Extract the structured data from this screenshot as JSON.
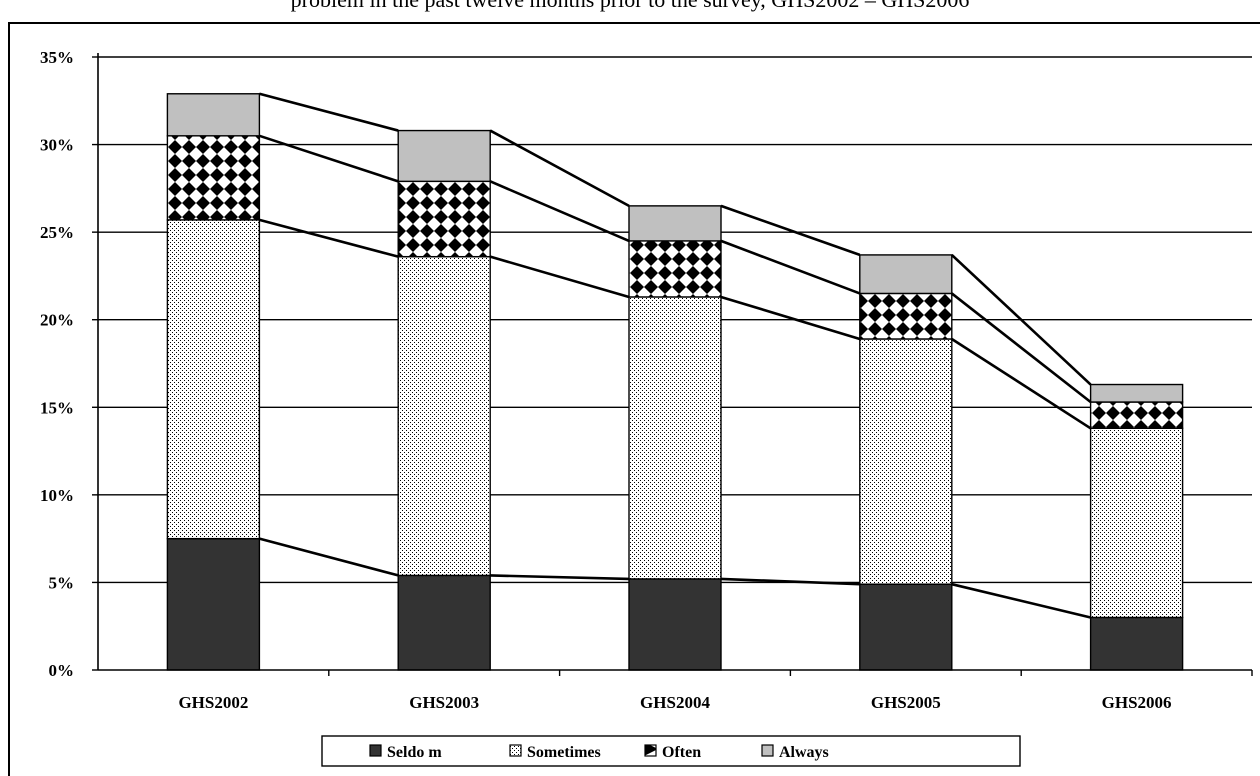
{
  "caption": "problem in the past twelve months prior to the survey, GHS2002 – GHS2006",
  "colors": {
    "seldom": "#333333",
    "always": "#c0c0c0",
    "axis": "#000000",
    "gridline": "#000000"
  },
  "chart_data": {
    "type": "bar",
    "stacked": true,
    "connector_lines": true,
    "categories": [
      "GHS2002",
      "GHS2003",
      "GHS2004",
      "GHS2005",
      "GHS2006"
    ],
    "series": [
      {
        "name": "Seldo m",
        "pattern": "solid-dark",
        "values": [
          7.5,
          5.4,
          5.2,
          4.9,
          3.0
        ]
      },
      {
        "name": "Sometimes",
        "pattern": "fine-dots",
        "values": [
          18.2,
          18.2,
          16.1,
          14.0,
          10.8
        ]
      },
      {
        "name": "Often",
        "pattern": "diamond-checker",
        "values": [
          4.8,
          4.3,
          3.2,
          2.6,
          1.5
        ]
      },
      {
        "name": "Always",
        "pattern": "solid-light",
        "values": [
          2.4,
          2.9,
          2.0,
          2.2,
          1.0
        ]
      }
    ],
    "ylim": [
      0,
      35
    ],
    "yticks": [
      0,
      5,
      10,
      15,
      20,
      25,
      30,
      35
    ],
    "ytick_labels": [
      "0%",
      "5%",
      "10%",
      "15%",
      "20%",
      "25%",
      "30%",
      "35%"
    ],
    "grid": true,
    "legend_position": "bottom"
  }
}
